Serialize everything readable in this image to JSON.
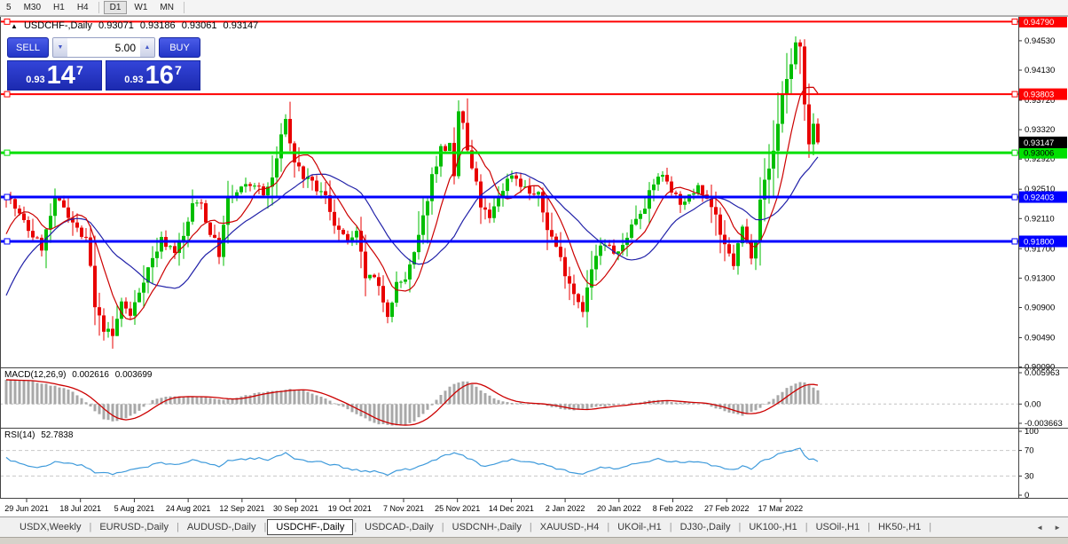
{
  "colors": {
    "toolbar_bg": "#f4f4f4",
    "tabbar_bg": "#f0f0f0",
    "statusbar_bg": "#d6d2ca",
    "panel_blue_top": "#4a5ce8",
    "panel_blue_bottom": "#2336c8",
    "panel_blue_dark_top": "#3344d8",
    "panel_blue_dark_bottom": "#1c2ab0",
    "panel_border": "#1626a0",
    "candle_up": "#00BE00",
    "candle_down": "#E80000",
    "ma_fast": "#CC0000",
    "ma_slow": "#2121A8",
    "macd_hist": "#A8A8A8",
    "macd_signal": "#CC0000",
    "rsi_line": "#3E9ADB"
  },
  "toolbar": {
    "buttons": [
      {
        "label": "5"
      },
      {
        "label": "M30"
      },
      {
        "label": "H1"
      },
      {
        "label": "H4"
      },
      {
        "label": "D1",
        "active": true,
        "separator_before": true
      },
      {
        "label": "W1"
      },
      {
        "label": "MN"
      }
    ],
    "trailing_separator": true
  },
  "chart_title": {
    "collapse_icon": "▲",
    "symbol": "USDCHF-,Daily",
    "open": "0.93071",
    "high": "0.93186",
    "low": "0.93061",
    "close": "0.93147"
  },
  "trade_panel": {
    "sell_label": "SELL",
    "buy_label": "BUY",
    "volume": "5.00",
    "decrease_icon": "▼",
    "increase_icon": "▲",
    "sell_price": {
      "big_figure": "0.93",
      "pips": "14",
      "pipette": "7"
    },
    "buy_price": {
      "big_figure": "0.93",
      "pips": "16",
      "pipette": "7"
    }
  },
  "indicators": {
    "macd": {
      "label": "MACD(12,26,9)",
      "value_text": "0.002616",
      "signal_text": "0.003699"
    },
    "rsi": {
      "label": "RSI(14)",
      "value_text": "52.7838"
    }
  },
  "chart_data": {
    "type": "candlestick",
    "symbol": "USDCHF-,Daily",
    "timeframe": "D1",
    "ohlc_display": {
      "open": 0.93071,
      "high": 0.93186,
      "low": 0.93061,
      "close": 0.93147
    },
    "candle_count": 184,
    "y_axis": {
      "top_value": 0.94855,
      "bottom_value": 0.90085,
      "ticks": [
        "0.94530",
        "0.94130",
        "0.93720",
        "0.93320",
        "0.92920",
        "0.92510",
        "0.92110",
        "0.91700",
        "0.91300",
        "0.90900",
        "0.90490",
        "0.90090"
      ]
    },
    "x_axis": {
      "labels": [
        "29 Jun 2021",
        "18 Jul 2021",
        "5 Aug 2021",
        "24 Aug 2021",
        "12 Sep 2021",
        "30 Sep 2021",
        "19 Oct 2021",
        "7 Nov 2021",
        "25 Nov 2021",
        "14 Dec 2021",
        "2 Jan 2022",
        "20 Jan 2022",
        "8 Feb 2022",
        "27 Feb 2022",
        "17 Mar 2022"
      ]
    },
    "levels": [
      {
        "label": "0.94790",
        "value": 0.9479,
        "color": "#FF0000",
        "thickness": 2,
        "label_fg": "#FFFFFF"
      },
      {
        "label": "0.93803",
        "value": 0.93803,
        "color": "#FF0000",
        "thickness": 2,
        "label_fg": "#FFFFFF"
      },
      {
        "label": "0.93006",
        "value": 0.93006,
        "color": "#00E000",
        "thickness": 3,
        "label_fg": "#000000"
      },
      {
        "label": "0.92403",
        "value": 0.92403,
        "color": "#0000FF",
        "thickness": 3,
        "label_fg": "#FFFFFF"
      },
      {
        "label": "0.91800",
        "value": 0.918,
        "color": "#0000FF",
        "thickness": 3,
        "label_fg": "#FFFFFF"
      }
    ],
    "current_price": {
      "label": "0.93147",
      "value": 0.93147,
      "label_bg": "#000000",
      "label_fg": "#FFFFFF"
    },
    "price_path": [
      [
        0,
        0.9245
      ],
      [
        3,
        0.9215
      ],
      [
        5,
        0.9196
      ],
      [
        8,
        0.9172
      ],
      [
        11,
        0.9235
      ],
      [
        13,
        0.9228
      ],
      [
        16,
        0.9196
      ],
      [
        18,
        0.918
      ],
      [
        19,
        0.9145
      ],
      [
        20,
        0.9088
      ],
      [
        22,
        0.9062
      ],
      [
        24,
        0.905
      ],
      [
        26,
        0.9098
      ],
      [
        28,
        0.9078
      ],
      [
        31,
        0.913
      ],
      [
        33,
        0.9156
      ],
      [
        35,
        0.9182
      ],
      [
        38,
        0.9168
      ],
      [
        40,
        0.9186
      ],
      [
        42,
        0.9228
      ],
      [
        44,
        0.9236
      ],
      [
        45,
        0.9206
      ],
      [
        47,
        0.918
      ],
      [
        48,
        0.9163
      ],
      [
        50,
        0.9236
      ],
      [
        53,
        0.9251
      ],
      [
        56,
        0.9259
      ],
      [
        58,
        0.9242
      ],
      [
        60,
        0.9266
      ],
      [
        62,
        0.932
      ],
      [
        63,
        0.9351
      ],
      [
        64,
        0.9312
      ],
      [
        65,
        0.929
      ],
      [
        67,
        0.9268
      ],
      [
        70,
        0.9251
      ],
      [
        72,
        0.924
      ],
      [
        74,
        0.9206
      ],
      [
        76,
        0.9184
      ],
      [
        78,
        0.918
      ],
      [
        79,
        0.9189
      ],
      [
        81,
        0.9132
      ],
      [
        83,
        0.9128
      ],
      [
        85,
        0.91
      ],
      [
        86,
        0.9083
      ],
      [
        88,
        0.9121
      ],
      [
        90,
        0.9129
      ],
      [
        92,
        0.9161
      ],
      [
        94,
        0.9211
      ],
      [
        96,
        0.9269
      ],
      [
        98,
        0.9306
      ],
      [
        100,
        0.9309
      ],
      [
        101,
        0.9263
      ],
      [
        102,
        0.9356
      ],
      [
        103,
        0.9341
      ],
      [
        104,
        0.9301
      ],
      [
        106,
        0.9256
      ],
      [
        107,
        0.9229
      ],
      [
        109,
        0.9209
      ],
      [
        111,
        0.9241
      ],
      [
        113,
        0.9263
      ],
      [
        114,
        0.9273
      ],
      [
        116,
        0.9259
      ],
      [
        118,
        0.9246
      ],
      [
        120,
        0.9241
      ],
      [
        122,
        0.9199
      ],
      [
        124,
        0.9173
      ],
      [
        126,
        0.9139
      ],
      [
        128,
        0.9111
      ],
      [
        130,
        0.9089
      ],
      [
        132,
        0.9141
      ],
      [
        134,
        0.9173
      ],
      [
        136,
        0.9172
      ],
      [
        138,
        0.9161
      ],
      [
        140,
        0.9189
      ],
      [
        142,
        0.9213
      ],
      [
        144,
        0.9231
      ],
      [
        146,
        0.9256
      ],
      [
        147,
        0.9271
      ],
      [
        149,
        0.9263
      ],
      [
        151,
        0.9241
      ],
      [
        153,
        0.9229
      ],
      [
        155,
        0.9249
      ],
      [
        156,
        0.9261
      ],
      [
        158,
        0.9239
      ],
      [
        160,
        0.9216
      ],
      [
        161,
        0.9183
      ],
      [
        163,
        0.9161
      ],
      [
        164,
        0.9149
      ],
      [
        166,
        0.9199
      ],
      [
        167,
        0.9178
      ],
      [
        168,
        0.9163
      ],
      [
        169,
        0.9186
      ],
      [
        170,
        0.9241
      ],
      [
        172,
        0.9279
      ],
      [
        173,
        0.9303
      ],
      [
        175,
        0.9381
      ],
      [
        176,
        0.9401
      ],
      [
        177,
        0.9423
      ],
      [
        178,
        0.9449
      ],
      [
        179,
        0.9441
      ],
      [
        180,
        0.9361
      ],
      [
        181,
        0.9309
      ],
      [
        182,
        0.9341
      ],
      [
        183,
        0.93147
      ]
    ],
    "moving_averages": [
      {
        "name": "fast",
        "period": 8,
        "color": "#CC0000"
      },
      {
        "name": "slow",
        "period": 20,
        "color": "#2121A8"
      }
    ],
    "macd": {
      "params": "12,26,9",
      "value": 0.002616,
      "signal_value": 0.003699,
      "axis": {
        "max": 0.005963,
        "max_label": "0.005963",
        "zero_label": "0.00",
        "min": -0.003663,
        "min_label": "-0.003663"
      },
      "path": [
        [
          0,
          0.0046
        ],
        [
          6,
          0.0043
        ],
        [
          10,
          0.0036
        ],
        [
          14,
          0.0028
        ],
        [
          17,
          0.0012
        ],
        [
          19,
          -0.0005
        ],
        [
          22,
          -0.0028
        ],
        [
          24,
          -0.0033
        ],
        [
          27,
          -0.0028
        ],
        [
          30,
          -0.0012
        ],
        [
          33,
          0.0008
        ],
        [
          36,
          0.0015
        ],
        [
          40,
          0.0013
        ],
        [
          44,
          0.0015
        ],
        [
          48,
          0.0008
        ],
        [
          52,
          0.0012
        ],
        [
          56,
          0.002
        ],
        [
          60,
          0.0024
        ],
        [
          63,
          0.0028
        ],
        [
          66,
          0.0028
        ],
        [
          69,
          0.002
        ],
        [
          72,
          0.001
        ],
        [
          75,
          -0.0002
        ],
        [
          78,
          -0.0015
        ],
        [
          81,
          -0.0028
        ],
        [
          84,
          -0.0038
        ],
        [
          87,
          -0.0042
        ],
        [
          90,
          -0.004
        ],
        [
          92,
          -0.0032
        ],
        [
          94,
          -0.0018
        ],
        [
          96,
          -0.0002
        ],
        [
          98,
          0.0018
        ],
        [
          100,
          0.0032
        ],
        [
          102,
          0.0042
        ],
        [
          104,
          0.0042
        ],
        [
          106,
          0.0032
        ],
        [
          108,
          0.002
        ],
        [
          110,
          0.001
        ],
        [
          113,
          0.0004
        ],
        [
          116,
          0.0002
        ],
        [
          119,
          0.0001
        ],
        [
          122,
          -0.0004
        ],
        [
          125,
          -0.0009
        ],
        [
          128,
          -0.0012
        ],
        [
          131,
          -0.0009
        ],
        [
          134,
          -0.0005
        ],
        [
          137,
          -0.0002
        ],
        [
          140,
          0.0001
        ],
        [
          143,
          0.0004
        ],
        [
          146,
          0.0007
        ],
        [
          149,
          0.0006
        ],
        [
          152,
          0.0003
        ],
        [
          155,
          0.0002
        ],
        [
          158,
          -0.0002
        ],
        [
          161,
          -0.001
        ],
        [
          164,
          -0.0018
        ],
        [
          166,
          -0.0021
        ],
        [
          168,
          -0.0016
        ],
        [
          170,
          -0.0008
        ],
        [
          172,
          0.0004
        ],
        [
          174,
          0.0016
        ],
        [
          176,
          0.003
        ],
        [
          178,
          0.004
        ],
        [
          180,
          0.0042
        ],
        [
          182,
          0.0032
        ],
        [
          183,
          0.0026
        ]
      ]
    },
    "rsi": {
      "period": 14,
      "value": 52.7838,
      "overbought": 70,
      "oversold": 30,
      "axis_labels": [
        "100",
        "70",
        "30",
        "0"
      ],
      "path": [
        [
          0,
          58
        ],
        [
          4,
          48
        ],
        [
          8,
          44
        ],
        [
          11,
          52
        ],
        [
          15,
          50
        ],
        [
          18,
          44
        ],
        [
          20,
          35
        ],
        [
          24,
          33
        ],
        [
          28,
          38
        ],
        [
          32,
          46
        ],
        [
          35,
          50
        ],
        [
          38,
          48
        ],
        [
          42,
          54
        ],
        [
          45,
          50
        ],
        [
          48,
          46
        ],
        [
          50,
          54
        ],
        [
          53,
          56
        ],
        [
          56,
          58
        ],
        [
          59,
          55
        ],
        [
          62,
          63
        ],
        [
          63,
          66
        ],
        [
          65,
          58
        ],
        [
          68,
          54
        ],
        [
          71,
          52
        ],
        [
          74,
          47
        ],
        [
          77,
          42
        ],
        [
          81,
          37
        ],
        [
          84,
          36
        ],
        [
          86,
          32
        ],
        [
          88,
          38
        ],
        [
          91,
          41
        ],
        [
          93,
          46
        ],
        [
          95,
          52
        ],
        [
          98,
          60
        ],
        [
          102,
          66
        ],
        [
          104,
          58
        ],
        [
          107,
          48
        ],
        [
          109,
          45
        ],
        [
          112,
          52
        ],
        [
          114,
          55
        ],
        [
          117,
          52
        ],
        [
          120,
          50
        ],
        [
          122,
          45
        ],
        [
          125,
          40
        ],
        [
          127,
          36
        ],
        [
          130,
          33
        ],
        [
          132,
          39
        ],
        [
          135,
          44
        ],
        [
          138,
          42
        ],
        [
          141,
          47
        ],
        [
          144,
          51
        ],
        [
          147,
          56
        ],
        [
          150,
          53
        ],
        [
          153,
          50
        ],
        [
          156,
          53
        ],
        [
          159,
          48
        ],
        [
          161,
          44
        ],
        [
          164,
          40
        ],
        [
          166,
          46
        ],
        [
          168,
          42
        ],
        [
          170,
          52
        ],
        [
          173,
          60
        ],
        [
          175,
          68
        ],
        [
          177,
          70
        ],
        [
          179,
          72
        ],
        [
          180,
          62
        ],
        [
          181,
          56
        ],
        [
          182,
          58
        ],
        [
          183,
          52.78
        ]
      ]
    }
  },
  "tabs": {
    "items": [
      "USDX,Weekly",
      "EURUSD-,Daily",
      "AUDUSD-,Daily",
      "USDCHF-,Daily",
      "USDCAD-,Daily",
      "USDCNH-,Daily",
      "XAUUSD-,H4",
      "UKOil-,H1",
      "DJ30-,Daily",
      "UK100-,H1",
      "USOil-,H1",
      "HK50-,H1"
    ],
    "active_index": 3,
    "scroll_left_icon": "◄",
    "scroll_right_icon": "►"
  }
}
